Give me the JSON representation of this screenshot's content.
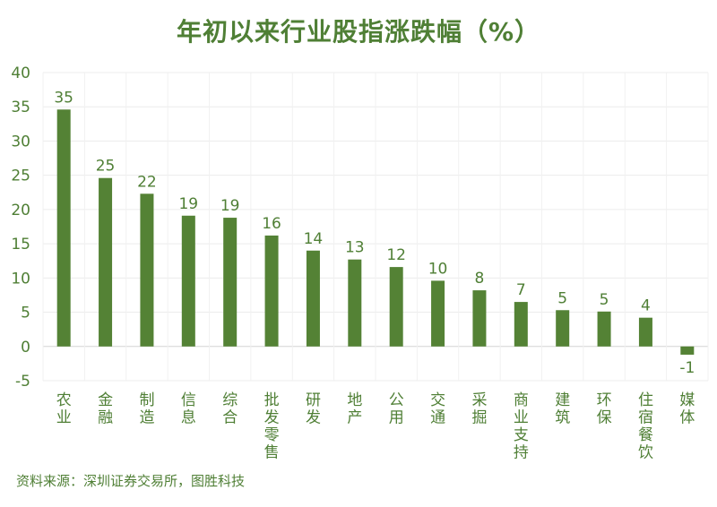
{
  "chart_data": {
    "type": "bar",
    "title": "年初以来行业股指涨跌幅（%）",
    "xlabel": "",
    "ylabel": "",
    "ylim": [
      -5,
      40
    ],
    "yticks": [
      40,
      35,
      30,
      25,
      20,
      15,
      10,
      5,
      0,
      -5
    ],
    "grid": true,
    "legend": "none",
    "categories": [
      "农业",
      "金融",
      "制造",
      "信息",
      "综合",
      "批发零售",
      "研发",
      "地产",
      "公用",
      "交通",
      "采掘",
      "商业支持",
      "建筑",
      "环保",
      "住宿餐饮",
      "媒体"
    ],
    "values": [
      34.6,
      24.6,
      22.3,
      19.1,
      18.8,
      16.2,
      14.0,
      12.7,
      11.6,
      9.6,
      8.2,
      6.5,
      5.3,
      5.1,
      4.2,
      -1.2
    ],
    "data_labels": [
      "35",
      "25",
      "22",
      "19",
      "19",
      "16",
      "14",
      "13",
      "12",
      "10",
      "8",
      "7",
      "5",
      "5",
      "4",
      "-1"
    ],
    "bar_color": "#548235",
    "source": "资料来源：深圳证券交易所，图胜科技"
  }
}
